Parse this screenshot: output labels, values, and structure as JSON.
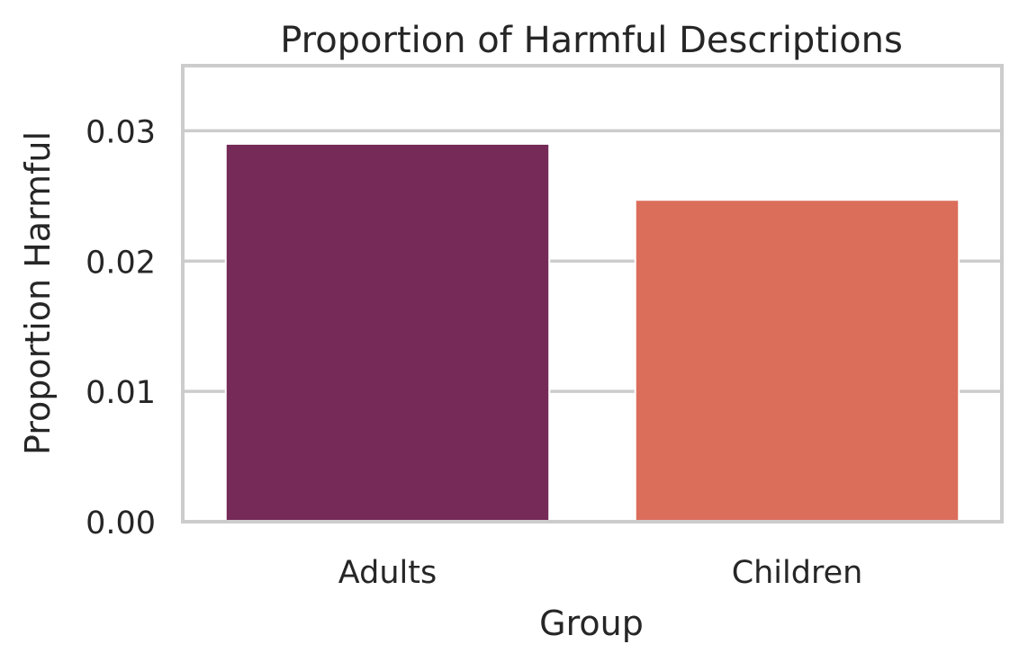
{
  "chart_data": {
    "type": "bar",
    "title": "Proportion of Harmful Descriptions",
    "xlabel": "Group",
    "ylabel": "Proportion Harmful",
    "categories": [
      "Adults",
      "Children"
    ],
    "values": [
      0.029,
      0.0247
    ],
    "colors": [
      "#752A57",
      "#DB6E5B"
    ],
    "ylim": [
      0,
      0.035
    ],
    "yticks": [
      0.0,
      0.01,
      0.02,
      0.03
    ],
    "ytick_labels": [
      "0.00",
      "0.01",
      "0.02",
      "0.03"
    ],
    "grid": "horizontal",
    "grid_color": "#cccccc",
    "frame_color": "#cccccc",
    "text_color": "#262626"
  }
}
